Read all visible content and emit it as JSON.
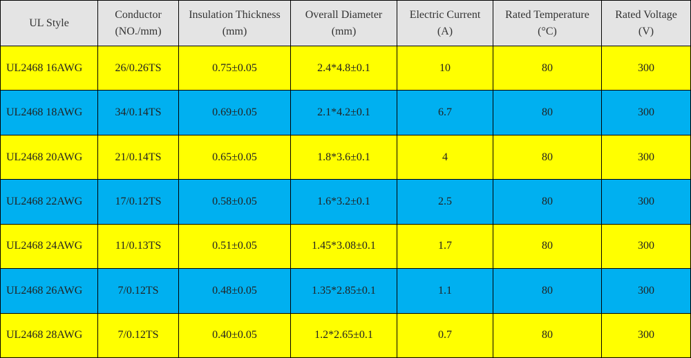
{
  "table": {
    "header": [
      [
        "UL Style"
      ],
      [
        "Conductor",
        "(NO./mm)"
      ],
      [
        "Insulation Thickness",
        "(mm)"
      ],
      [
        "Overall Diameter",
        "(mm)"
      ],
      [
        "Electric Current",
        "(A)"
      ],
      [
        "Rated Temperature",
        "(°C)"
      ],
      [
        "Rated Voltage",
        "(V)"
      ]
    ],
    "rows": [
      [
        "UL2468 16AWG",
        "26/0.26TS",
        "0.75±0.05",
        "2.4*4.8±0.1",
        "10",
        "80",
        "300"
      ],
      [
        "UL2468 18AWG",
        "34/0.14TS",
        "0.69±0.05",
        "2.1*4.2±0.1",
        "6.7",
        "80",
        "300"
      ],
      [
        "UL2468 20AWG",
        "21/0.14TS",
        "0.65±0.05",
        "1.8*3.6±0.1",
        "4",
        "80",
        "300"
      ],
      [
        "UL2468 22AWG",
        "17/0.12TS",
        "0.58±0.05",
        "1.6*3.2±0.1",
        "2.5",
        "80",
        "300"
      ],
      [
        "UL2468 24AWG",
        "11/0.13TS",
        "0.51±0.05",
        "1.45*3.08±0.1",
        "1.7",
        "80",
        "300"
      ],
      [
        "UL2468 26AWG",
        "7/0.12TS",
        "0.48±0.05",
        "1.35*2.85±0.1",
        "1.1",
        "80",
        "300"
      ],
      [
        "UL2468 28AWG",
        "7/0.12TS",
        "0.40±0.05",
        "1.2*2.65±0.1",
        "0.7",
        "80",
        "300"
      ]
    ]
  }
}
